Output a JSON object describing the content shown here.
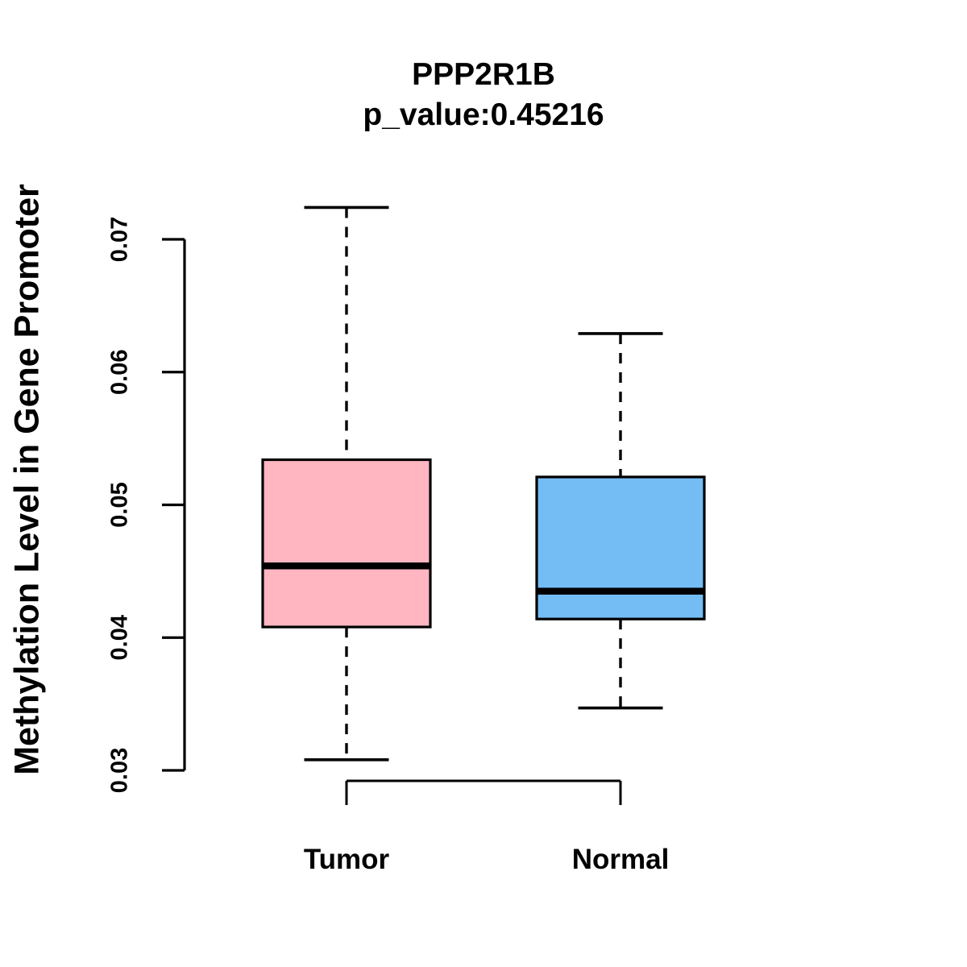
{
  "figure": {
    "title": "PPP2R1B",
    "subtitle": "p_value:0.45216",
    "y_axis_label": "Methylation Level in Gene Promoter"
  },
  "chart_data": {
    "type": "boxplot",
    "title": "PPP2R1B",
    "subtitle": "p_value:0.45216",
    "p_value": 0.45216,
    "gene": "PPP2R1B",
    "ylabel": "Methylation Level in Gene Promoter",
    "xlabel": "",
    "ylim": [
      0.03,
      0.07
    ],
    "y_ticks": [
      0.03,
      0.04,
      0.05,
      0.06,
      0.07
    ],
    "y_tick_labels": [
      "0.03",
      "0.04",
      "0.05",
      "0.06",
      "0.07"
    ],
    "categories": [
      "Tumor",
      "Normal"
    ],
    "series": [
      {
        "name": "Tumor",
        "fill_color": "#FFB6C1",
        "whisker_low": 0.0308,
        "q1": 0.0408,
        "median": 0.0454,
        "q3": 0.0534,
        "whisker_high": 0.0724
      },
      {
        "name": "Normal",
        "fill_color": "#74BDF4",
        "whisker_low": 0.0347,
        "q1": 0.0414,
        "median": 0.0435,
        "q3": 0.0521,
        "whisker_high": 0.0629
      }
    ],
    "box_border_color": "#000000",
    "median_color": "#000000",
    "whisker_style": "dashed",
    "grid": false,
    "legend": false,
    "background_color": "#FFFFFF"
  }
}
